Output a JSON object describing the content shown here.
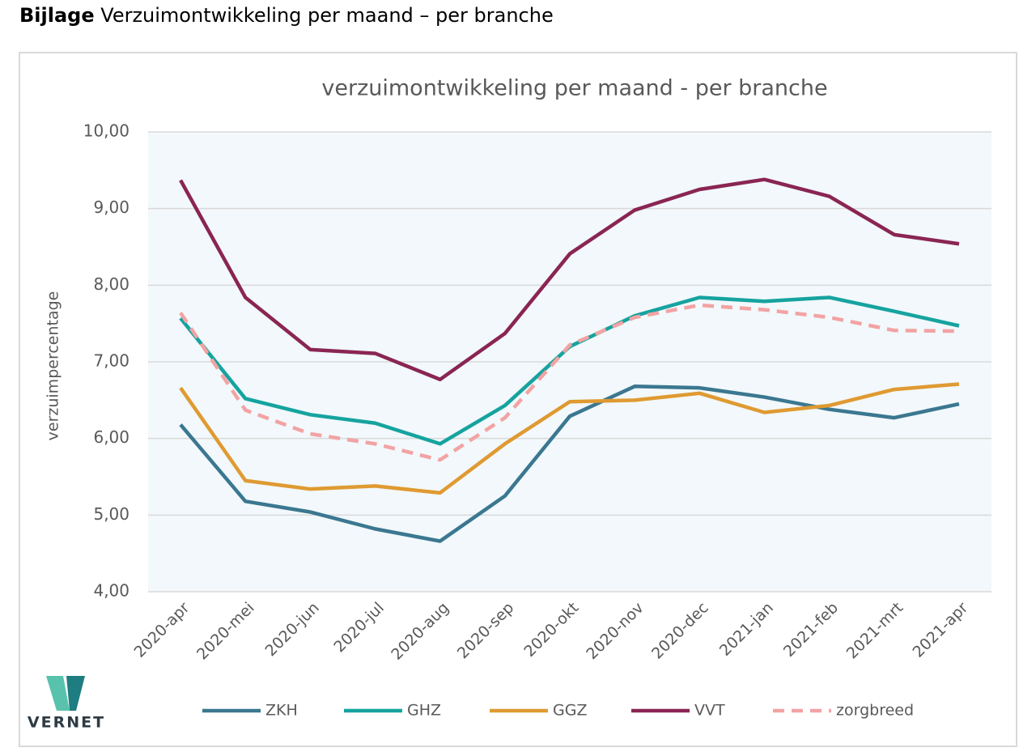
{
  "header": {
    "label": "Bijlage",
    "text": "Verzuimontwikkeling per maand – per branche"
  },
  "logo": {
    "text": "VERNET"
  },
  "chart_data": {
    "type": "line",
    "title": "verzuimontwikkeling  per maand - per branche",
    "y_label": "verzuimpercentage",
    "categories": [
      "2020-apr",
      "2020-mei",
      "2020-jun",
      "2020-jul",
      "2020-aug",
      "2020-sep",
      "2020-okt",
      "2020-nov",
      "2020-dec",
      "2021-jan",
      "2021-feb",
      "2021-mrt",
      "2021-apr"
    ],
    "series": [
      {
        "name": "ZKH",
        "color": "#3b7790",
        "values": [
          6.18,
          5.18,
          5.04,
          4.82,
          4.66,
          5.25,
          6.29,
          6.68,
          6.66,
          6.54,
          6.38,
          6.27,
          6.45
        ]
      },
      {
        "name": "GHZ",
        "color": "#16a39f",
        "values": [
          7.57,
          6.52,
          6.31,
          6.2,
          5.93,
          6.43,
          7.2,
          7.6,
          7.84,
          7.79,
          7.84,
          7.66,
          7.47
        ]
      },
      {
        "name": "GGZ",
        "color": "#df9a31",
        "values": [
          6.66,
          5.45,
          5.34,
          5.38,
          5.29,
          5.93,
          6.48,
          6.5,
          6.59,
          6.34,
          6.43,
          6.64,
          6.71
        ]
      },
      {
        "name": "VVT",
        "color": "#8a2553",
        "values": [
          9.37,
          7.84,
          7.16,
          7.11,
          6.77,
          7.37,
          8.41,
          8.98,
          9.25,
          9.38,
          9.16,
          8.66,
          8.54
        ]
      },
      {
        "name": "zorgbreed",
        "color": "#f2a3a3",
        "dashed": true,
        "values": [
          7.64,
          6.37,
          6.06,
          5.93,
          5.72,
          6.27,
          7.22,
          7.58,
          7.74,
          7.68,
          7.58,
          7.41,
          7.4
        ]
      }
    ],
    "ylim": [
      4,
      10
    ],
    "yticks": [
      {
        "value": 4,
        "label": "4,00"
      },
      {
        "value": 5,
        "label": "5,00"
      },
      {
        "value": 6,
        "label": "6,00"
      },
      {
        "value": 7,
        "label": "7,00"
      },
      {
        "value": 8,
        "label": "8,00"
      },
      {
        "value": 9,
        "label": "9,00"
      },
      {
        "value": 10,
        "label": "10,00"
      }
    ],
    "grid": true,
    "legend": "bottom"
  }
}
